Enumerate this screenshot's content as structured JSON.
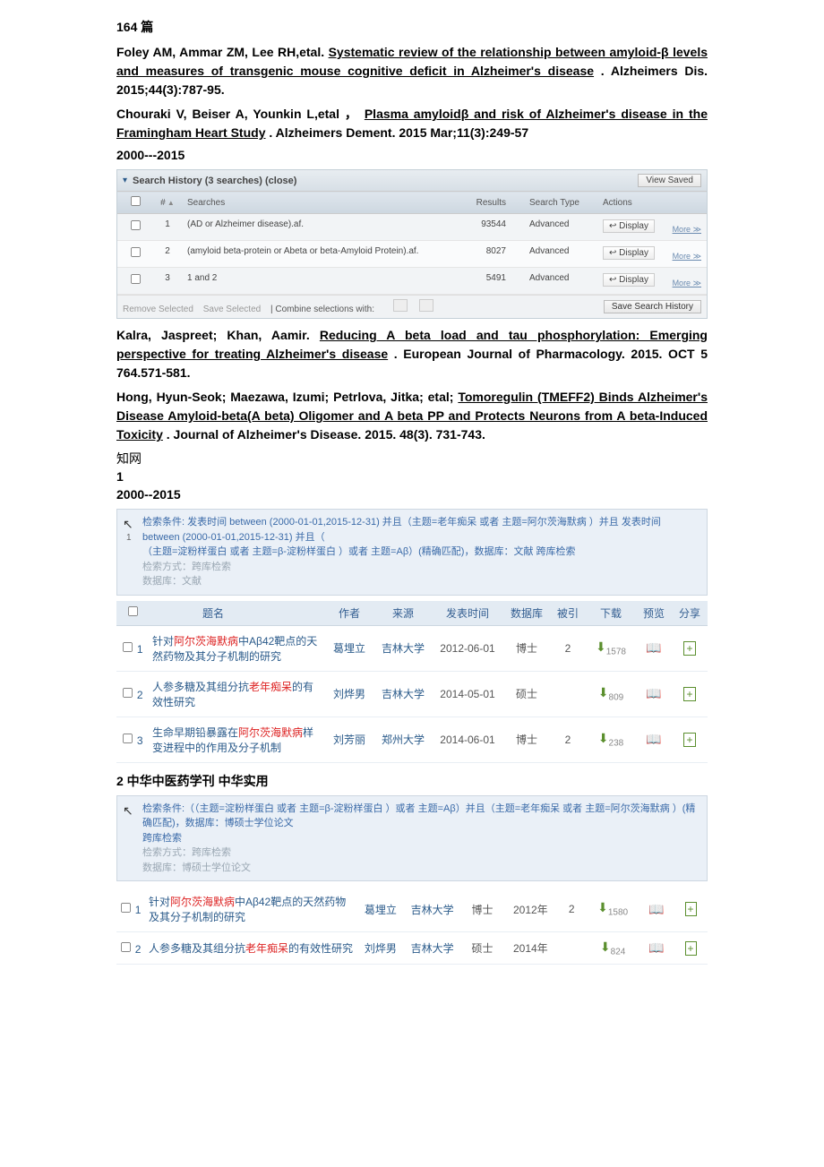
{
  "intro": {
    "count_label": "164 篇"
  },
  "refs": [
    {
      "authors": "Foley AM,  Ammar ZM,  Lee RH,etal. ",
      "title": "Systematic review of  the  relationship between amyloid-β levels and  measures of  transgenic mouse  cognitive deficit in Alzheimer's disease",
      "tail": ". Alzheimers Dis. 2015;44(3):787-95."
    },
    {
      "authors": "Chouraki V,  Beiser A,  Younkin L,etal ， ",
      "title": "Plasma amyloidβ  and  risk of Alzheimer's disease in the  Framingham Heart  Study",
      "tail": ". Alzheimers Dement.  2015 Mar;11(3):249-57"
    }
  ],
  "year_range_1": "2000---2015",
  "ovid": {
    "header": "Search History (3 searches) (close)",
    "view_saved": "View Saved",
    "cols": {
      "chk": "",
      "num": "# ▲",
      "searches": "Searches",
      "results": "Results",
      "type": "Search Type",
      "actions": "Actions"
    },
    "rows": [
      {
        "n": "1",
        "q": "(AD or Alzheimer disease).af.",
        "r": "93544",
        "t": "Advanced"
      },
      {
        "n": "2",
        "q": "(amyloid beta-protein or Abeta or beta-Amyloid Protein).af.",
        "r": "8027",
        "t": "Advanced"
      },
      {
        "n": "3",
        "q": "1 and 2",
        "r": "5491",
        "t": "Advanced"
      }
    ],
    "display_label": "Display",
    "more_label": "More ≫",
    "bottom": {
      "remove": "Remove Selected",
      "save_sel": "Save Selected",
      "combine": "Combine selections with:",
      "save_hist": "Save Search History"
    }
  },
  "refs2": [
    {
      "authors": "Kalra, Jaspreet; Khan, Aamir. ",
      "title": "Reducing A  beta  load  and  tau  phosphorylation: Emerging perspective for   treating   Alzheimer's  disease",
      "tail": ".  European  Journal  of Pharmacology. 2015. OCT 5 764.571-581."
    },
    {
      "authors": "Hong, Hyun-Seok; Maezawa, Izumi;  Petrlova, Jitka; etal; ",
      "title": "Tomoregulin (TMEFF2) Binds Alzheimer's Disease Amyloid-beta(A beta)  Oligomer and  A  beta  PP and Protects Neurons from A beta-Induced Toxicity",
      "tail": ". Journal of Alzheimer's Disease. 2015. 48(3). 731-743."
    }
  ],
  "cnki_label": "知网",
  "section1_num": "1",
  "year_range_2": "2000--2015",
  "cnki_cond1": {
    "line1": "检索条件: 发表时间 between (2000-01-01,2015-12-31) 并且（主题=老年痴呆 或者 主题=阿尔茨海默病 ）并且 发表时间 between (2000-01-01,2015-12-31) 并且（",
    "line2": "（主题=淀粉样蛋白 或者 主题=β-淀粉样蛋白 ）或者 主题=Aβ）(精确匹配)，数据库：文献 跨库检索",
    "line3": "检索方式：跨库检索",
    "line4": "数据库：文献"
  },
  "cnki_table1": {
    "cols": [
      "",
      "题名",
      "作者",
      "来源",
      "发表时间",
      "数据库",
      "被引",
      "下载",
      "预览",
      "分享"
    ],
    "rows": [
      {
        "n": "1",
        "title_pre": "针对",
        "title_red": "阿尔茨海默病",
        "title_mid": "中Aβ42靶点的天然药物及其分子机制的研究",
        "author": "葛埋立",
        "src": "吉林大学",
        "date": "2012-06-01",
        "db": "博士",
        "cite": "2",
        "dl": "1578"
      },
      {
        "n": "2",
        "title_pre": "人参多糖及其组分抗",
        "title_red": "老年痴呆",
        "title_mid": "的有效性研究",
        "author": "刘烨男",
        "src": "吉林大学",
        "date": "2014-05-01",
        "db": "硕士",
        "cite": "",
        "dl": "809"
      },
      {
        "n": "3",
        "title_pre": "生命早期铅暴露在",
        "title_red": "阿尔茨海默病",
        "title_mid": "样变进程中的作用及分子机制",
        "author": "刘芳丽",
        "src": "郑州大学",
        "date": "2014-06-01",
        "db": "博士",
        "cite": "2",
        "dl": "238"
      }
    ]
  },
  "section2_header": "2 中华中医药学刊      中华实用",
  "cnki_cond2": {
    "line1": "检索条件:（（主题=淀粉样蛋白 或者 主题=β-淀粉样蛋白 ）或者 主题=Aβ）并且（主题=老年痴呆 或者 主题=阿尔茨海默病 ）(精确匹配)，数据库：博硕士学位论文",
    "line2": "跨库检索",
    "line3": "检索方式：跨库检索",
    "line4": "数据库：博硕士学位论文"
  },
  "cnki_table2": {
    "rows": [
      {
        "n": "1",
        "title_pre": "针对",
        "title_red": "阿尔茨海默病",
        "title_mid": "中Aβ42靶点的天然药物及其分子机制的研究",
        "author": "葛埋立",
        "src": "吉林大学",
        "db": "博士",
        "date": "2012年",
        "cite": "2",
        "dl": "1580"
      },
      {
        "n": "2",
        "title_pre": "人参多糖及其组分抗",
        "title_red": "老年痴呆",
        "title_mid": "的有效性研究",
        "author": "刘烨男",
        "src": "吉林大学",
        "db": "硕士",
        "date": "2014年",
        "cite": "",
        "dl": "824"
      }
    ]
  }
}
